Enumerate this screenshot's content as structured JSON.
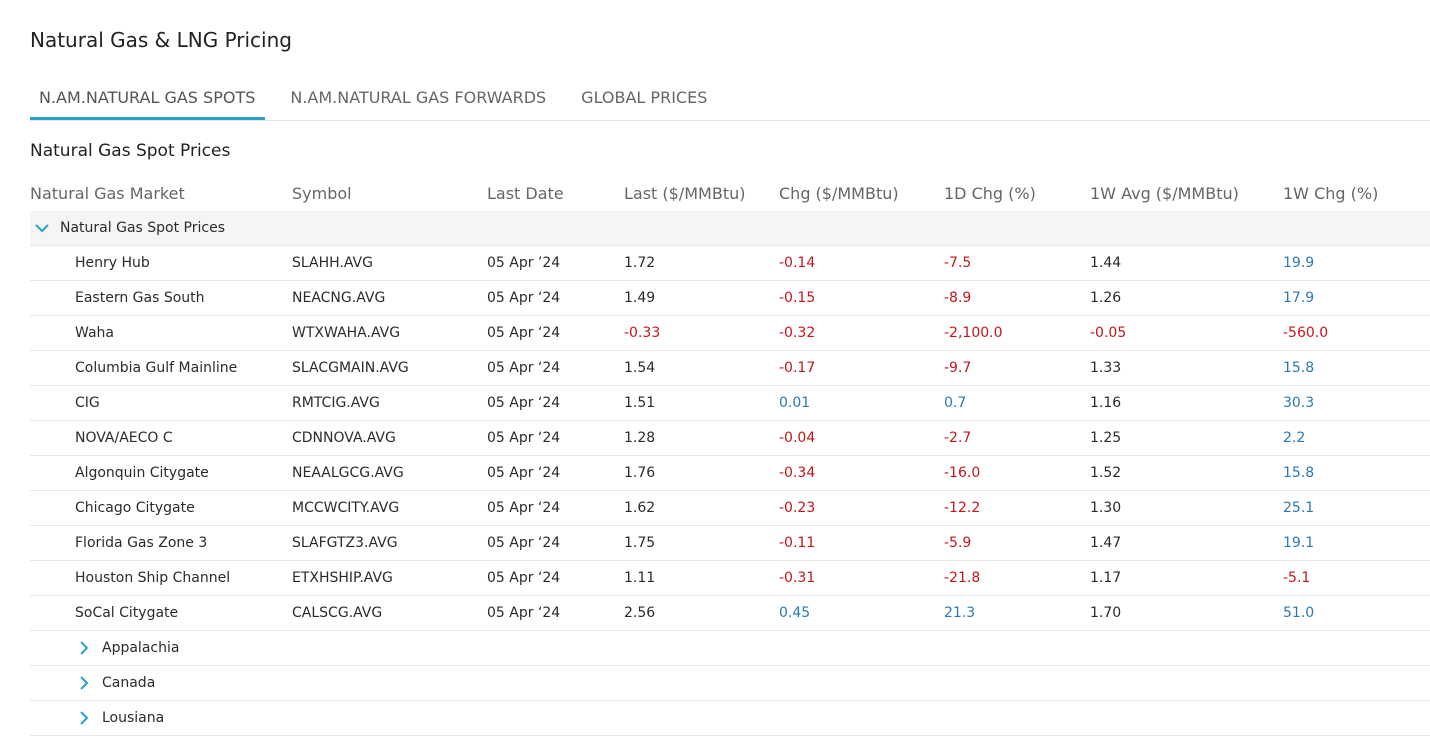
{
  "header": {
    "title": "Natural Gas & LNG Pricing"
  },
  "tabs": [
    {
      "label": "N.AM.NATURAL GAS SPOTS",
      "active": true
    },
    {
      "label": "N.AM.NATURAL GAS FORWARDS",
      "active": false
    },
    {
      "label": "GLOBAL PRICES",
      "active": false
    }
  ],
  "section": {
    "title": "Natural Gas Spot Prices"
  },
  "table": {
    "columns": [
      "Natural Gas Market",
      "Symbol",
      "Last Date",
      "Last ($/MMBtu)",
      "Chg ($/MMBtu)",
      "1D Chg (%)",
      "1W Avg ($/MMBtu)",
      "1W Chg (%)"
    ],
    "groups": [
      {
        "label": "Natural Gas Spot Prices",
        "expanded": true,
        "rows": [
          [
            "Henry Hub",
            "SLAHH.AVG",
            "05 Apr ’24",
            "1.72",
            "-0.14",
            "-7.5",
            "1.44",
            "19.9"
          ],
          [
            "Eastern Gas South",
            "NEACNG.AVG",
            "05 Apr ‘24",
            "1.49",
            "-0.15",
            "-8.9",
            "1.26",
            "17.9"
          ],
          [
            "Waha",
            "WTXWAHA.AVG",
            "05 Apr ‘24",
            "-0.33",
            "-0.32",
            "-2,100.0",
            "-0.05",
            "-560.0"
          ],
          [
            "Columbia Gulf Mainline",
            "SLACGMAIN.AVG",
            "05 Apr ‘24",
            "1.54",
            "-0.17",
            "-9.7",
            "1.33",
            "15.8"
          ],
          [
            "CIG",
            "RMTCIG.AVG",
            "05 Apr ‘24",
            "1.51",
            "0.01",
            "0.7",
            "1.16",
            "30.3"
          ],
          [
            "NOVA/AECO C",
            "CDNNOVA.AVG",
            "05 Apr ‘24",
            "1.28",
            "-0.04",
            "-2.7",
            "1.25",
            "2.2"
          ],
          [
            "Algonquin Citygate",
            "NEAALGCG.AVG",
            "05 Apr ‘24",
            "1.76",
            "-0.34",
            "-16.0",
            "1.52",
            "15.8"
          ],
          [
            "Chicago Citygate",
            "MCCWCITY.AVG",
            "05 Apr ‘24",
            "1.62",
            "-0.23",
            "-12.2",
            "1.30",
            "25.1"
          ],
          [
            "Florida Gas Zone 3",
            "SLAFGTZ3.AVG",
            "05 Apr ‘24",
            "1.75",
            "-0.11",
            "-5.9",
            "1.47",
            "19.1"
          ],
          [
            "Houston Ship Channel",
            "ETXHSHIP.AVG",
            "05 Apr ‘24",
            "1.11",
            "-0.31",
            "-21.8",
            "1.17",
            "-5.1"
          ],
          [
            "SoCal Citygate",
            "CALSCG.AVG",
            "05 Apr ‘24",
            "2.56",
            "0.45",
            "21.3",
            "1.70",
            "51.0"
          ]
        ]
      },
      {
        "label": "Appalachia",
        "expanded": false
      },
      {
        "label": "Canada",
        "expanded": false
      },
      {
        "label": "Lousiana",
        "expanded": false
      }
    ]
  }
}
